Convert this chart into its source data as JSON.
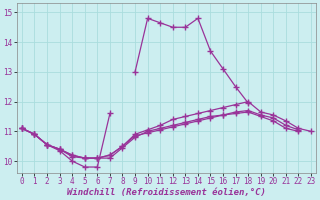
{
  "background_color": "#cceef0",
  "grid_color": "#aadddd",
  "line_color": "#993399",
  "marker": "+",
  "markersize": 4,
  "linewidth": 0.9,
  "xlabel": "Windchill (Refroidissement éolien,°C)",
  "xlabel_fontsize": 6.5,
  "xlim": [
    -0.4,
    23.4
  ],
  "ylim": [
    9.6,
    15.3
  ],
  "yticks": [
    10,
    11,
    12,
    13,
    14,
    15
  ],
  "xticks": [
    0,
    1,
    2,
    3,
    4,
    5,
    6,
    7,
    8,
    9,
    10,
    11,
    12,
    13,
    14,
    15,
    16,
    17,
    18,
    19,
    20,
    21,
    22,
    23
  ],
  "series": [
    [
      11.1,
      10.9,
      10.55,
      10.35,
      10.0,
      9.8,
      9.8,
      11.6,
      null,
      13.0,
      14.8,
      14.65,
      14.5,
      14.5,
      14.8,
      13.7,
      13.1,
      12.5,
      11.95,
      null,
      null,
      null,
      null,
      null
    ],
    [
      11.1,
      10.9,
      10.55,
      10.4,
      10.15,
      10.1,
      10.1,
      10.1,
      10.45,
      10.8,
      11.0,
      11.1,
      11.2,
      11.3,
      11.4,
      11.5,
      11.55,
      11.6,
      11.65,
      11.5,
      11.35,
      11.1,
      11.0,
      null
    ],
    [
      11.1,
      10.9,
      10.55,
      10.4,
      10.2,
      10.1,
      10.1,
      10.2,
      10.5,
      10.85,
      10.95,
      11.05,
      11.15,
      11.25,
      11.35,
      11.45,
      11.55,
      11.65,
      11.7,
      11.55,
      11.45,
      11.2,
      11.05,
      null
    ],
    [
      11.1,
      10.9,
      10.55,
      10.4,
      10.2,
      10.1,
      10.1,
      10.2,
      10.5,
      10.9,
      11.05,
      11.2,
      11.4,
      11.5,
      11.6,
      11.7,
      11.8,
      11.9,
      12.0,
      11.65,
      11.55,
      11.35,
      11.1,
      11.0
    ]
  ]
}
